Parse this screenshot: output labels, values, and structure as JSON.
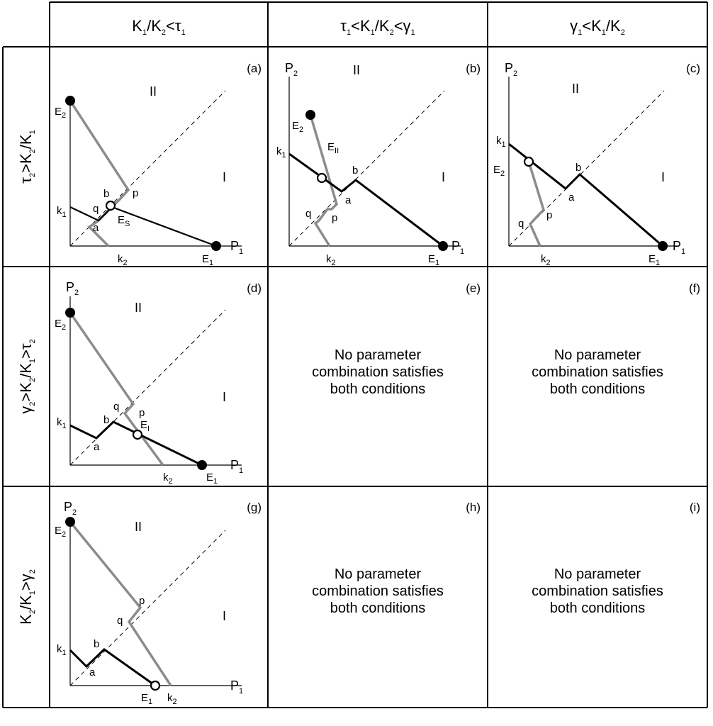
{
  "col_headers": [
    {
      "a": "K",
      "s1": "1",
      "b": "/K",
      "s2": "2",
      "c": "<τ",
      "s3": "1"
    },
    {
      "a": "τ",
      "s1": "1",
      "b": "<K",
      "s2": "1",
      "c": "/K",
      "s3": "2",
      "d": "<γ",
      "s4": "1"
    },
    {
      "a": "γ",
      "s1": "1",
      "b": "<K",
      "s2": "1",
      "c": "/K",
      "s3": "2"
    }
  ],
  "row_headers": [
    {
      "a": "τ",
      "s1": "2",
      "b": ">K",
      "s2": "2",
      "c": "/K",
      "s3": "1"
    },
    {
      "a": "γ",
      "s1": "2",
      "b": ">K",
      "s2": "2",
      "c": "/K",
      "s3": "1",
      "d": ">τ",
      "s4": "2"
    },
    {
      "a": "K",
      "s1": "2",
      "b": "/K",
      "s2": "1",
      "c": ">γ",
      "s3": "2"
    }
  ],
  "panel_tags": [
    "(a)",
    "(b)",
    "(c)",
    "(d)",
    "(e)",
    "(f)",
    "(g)",
    "(h)",
    "(i)"
  ],
  "axes": {
    "x": "P",
    "x_sub": "1",
    "y": "P",
    "y_sub": "2"
  },
  "regions": {
    "one": "I",
    "two": "II"
  },
  "points": {
    "k": "k",
    "E": "E",
    "a": "a",
    "b": "b",
    "p": "p",
    "q": "q",
    "sub1": "1",
    "sub2": "2",
    "subS": "S",
    "subI": "I",
    "subII": "II"
  },
  "no_combo": [
    "No parameter",
    "combination satisfies",
    "both conditions"
  ],
  "colors": {
    "gray_line": "#8c8c8c",
    "black_line": "#000000",
    "grid": "#000000"
  }
}
